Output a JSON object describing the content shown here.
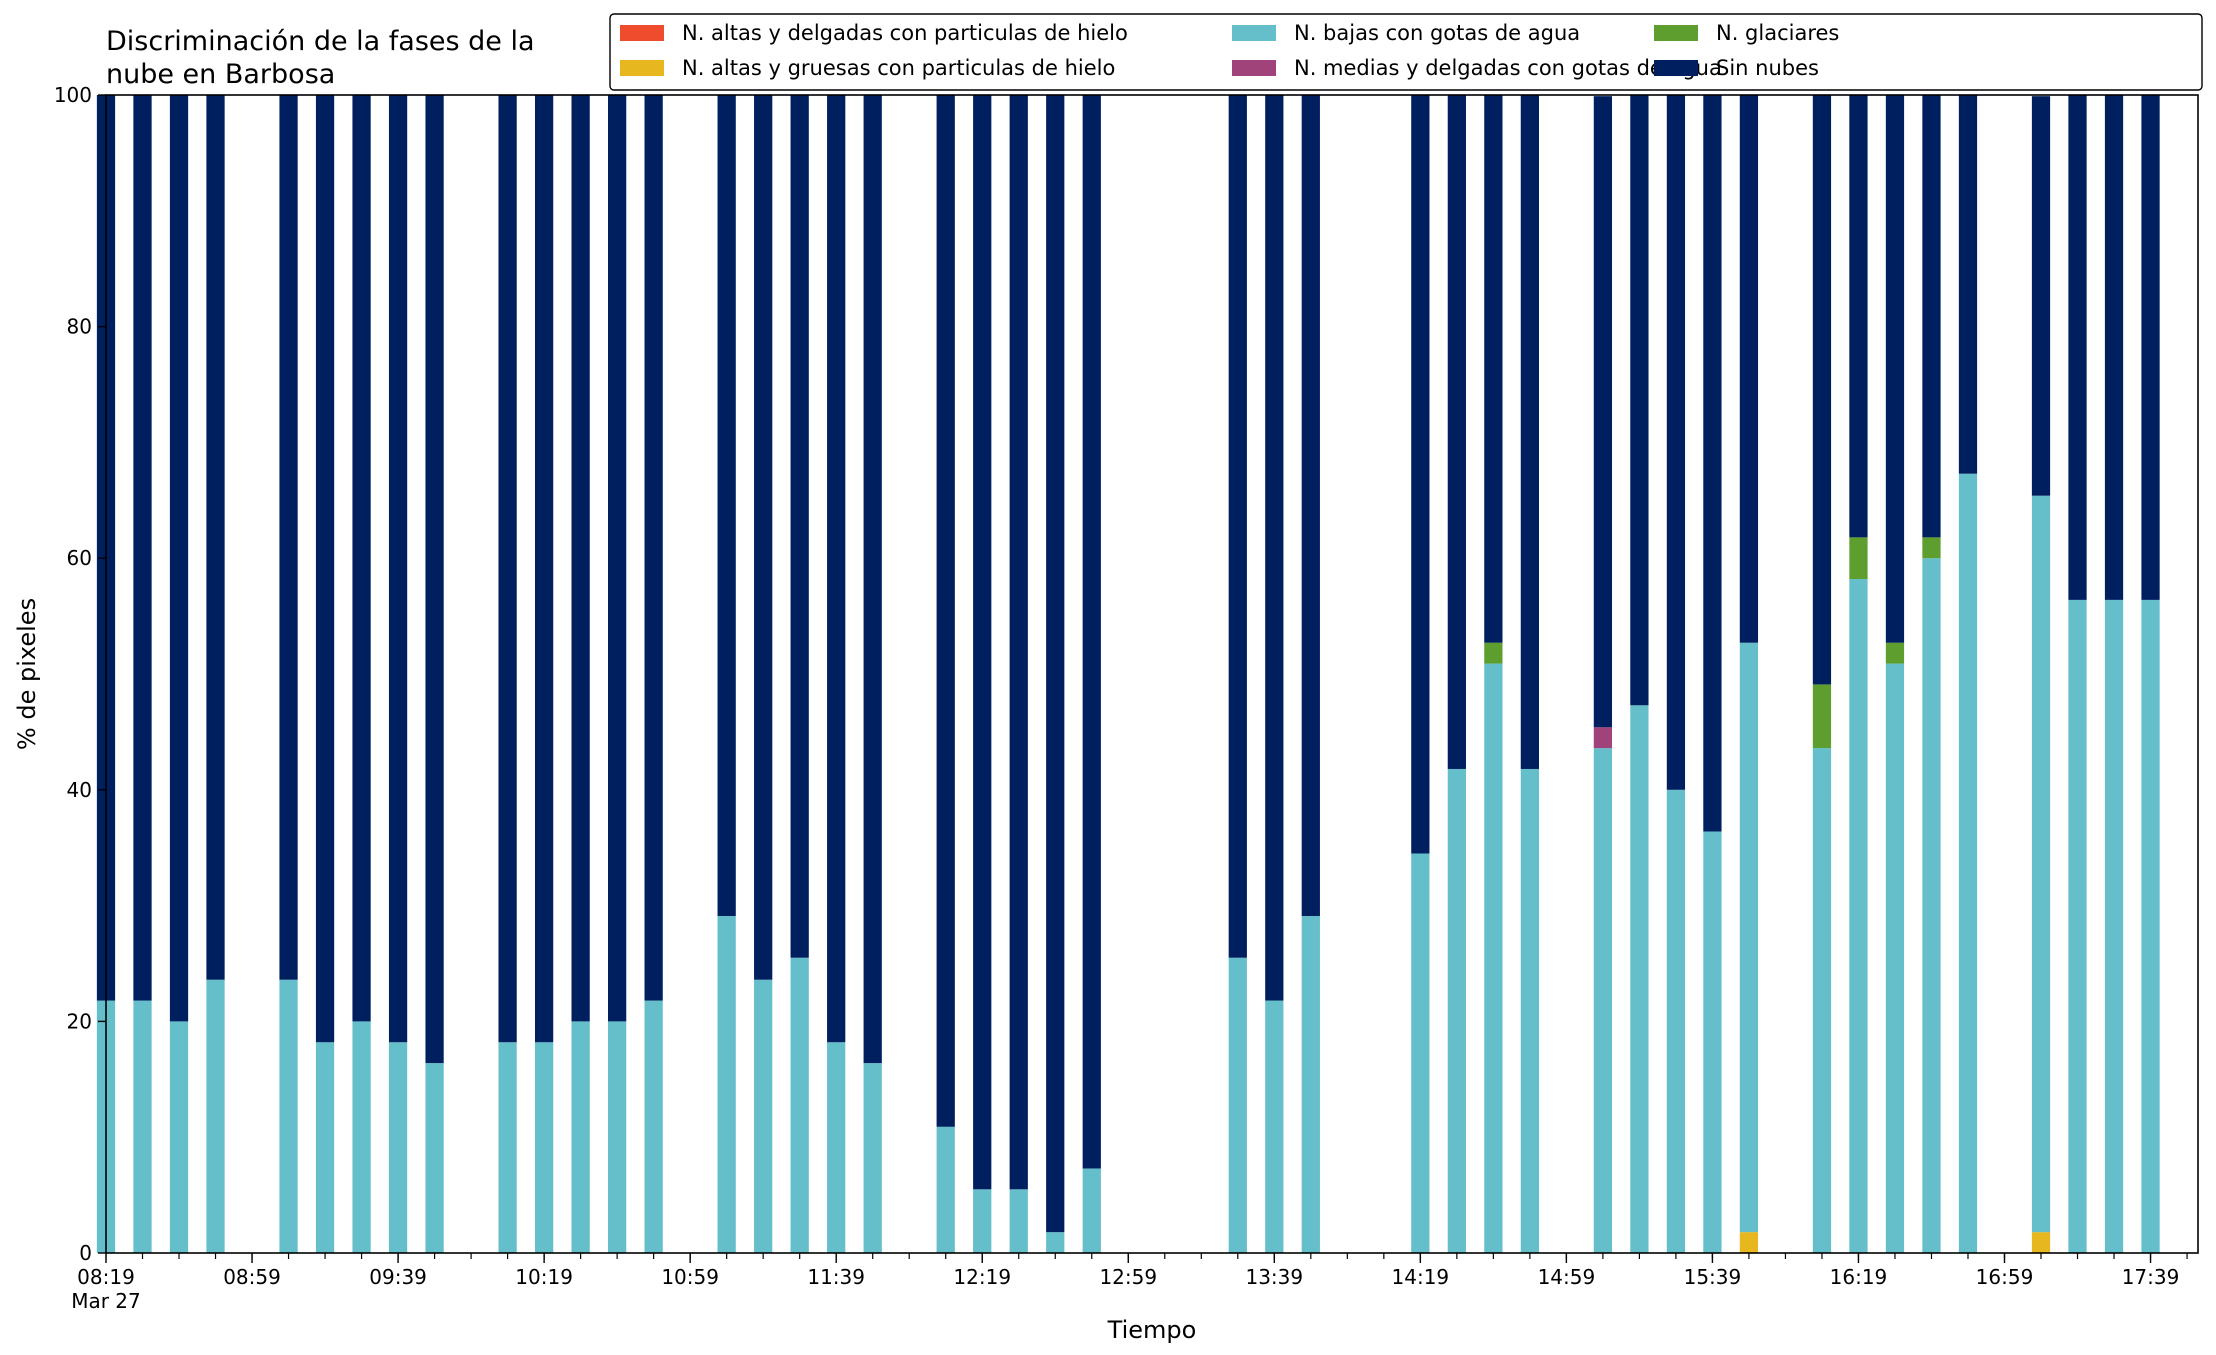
{
  "chart_data": {
    "type": "bar",
    "stacked": true,
    "title_lines": [
      "Discriminación de la fases de la",
      "nube en Barbosa"
    ],
    "xlabel": "Tiempo",
    "ylabel": "% de pixeles",
    "ylim": [
      0,
      100
    ],
    "yticks": [
      0,
      20,
      40,
      60,
      80,
      100
    ],
    "grid": false,
    "legend_position": "top-right",
    "x_start_minutes": 499,
    "x_end_minutes": 1072,
    "x_step_minutes": 10,
    "minor_tick_step_minutes": 10,
    "x_tick_labels": [
      "08:19",
      "08:59",
      "09:39",
      "10:19",
      "10:59",
      "11:39",
      "12:19",
      "12:59",
      "13:39",
      "14:19",
      "14:59",
      "15:39",
      "16:19",
      "16:59",
      "17:39"
    ],
    "x_tick_minutes": [
      499,
      539,
      579,
      619,
      659,
      699,
      739,
      779,
      819,
      859,
      899,
      939,
      979,
      1019,
      1059
    ],
    "x_date_label": "Mar 27",
    "bar_width_minutes": 5,
    "times": [
      "08:19",
      "08:29",
      "08:39",
      "08:49",
      "09:09",
      "09:19",
      "09:29",
      "09:39",
      "09:49",
      "10:09",
      "10:19",
      "10:29",
      "10:39",
      "10:49",
      "11:09",
      "11:19",
      "11:29",
      "11:39",
      "11:49",
      "12:09",
      "12:19",
      "12:29",
      "12:39",
      "12:49",
      "13:29",
      "13:39",
      "13:49",
      "14:19",
      "14:29",
      "14:39",
      "14:49",
      "15:09",
      "15:19",
      "15:29",
      "15:39",
      "15:49",
      "16:09",
      "16:19",
      "16:29",
      "16:39",
      "16:49",
      "17:09",
      "17:19",
      "17:29",
      "17:39"
    ],
    "series": [
      {
        "name": "N. altas y delgadas con particulas de hielo",
        "color": "#ee4c2d",
        "values": [
          0,
          0,
          0,
          0,
          0,
          0,
          0,
          0,
          0,
          0,
          0,
          0,
          0,
          0,
          0,
          0,
          0,
          0,
          0,
          0,
          0,
          0,
          0,
          0,
          0,
          0,
          0,
          0,
          0,
          0,
          0,
          0,
          0,
          0,
          0,
          0,
          0,
          0,
          0,
          0,
          0,
          0,
          0,
          0,
          0
        ]
      },
      {
        "name": "N. altas y gruesas con particulas de hielo",
        "color": "#e6b71e",
        "values": [
          0,
          0,
          0,
          0,
          0,
          0,
          0,
          0,
          0,
          0,
          0,
          0,
          0,
          0,
          0,
          0,
          0,
          0,
          0,
          0,
          0,
          0,
          0,
          0,
          0,
          0,
          0,
          0,
          0,
          0,
          0,
          0,
          0,
          0,
          0,
          1.8,
          0,
          0,
          0,
          0,
          0,
          1.8,
          0,
          0,
          0
        ]
      },
      {
        "name": "N. bajas con gotas de agua",
        "color": "#65bfcb",
        "values": [
          21.8,
          21.8,
          20.0,
          23.6,
          23.6,
          18.2,
          20.0,
          18.2,
          16.4,
          18.2,
          18.2,
          20.0,
          20.0,
          21.8,
          29.1,
          23.6,
          25.5,
          18.2,
          16.4,
          10.9,
          5.5,
          5.5,
          1.8,
          7.3,
          25.5,
          21.8,
          29.1,
          34.5,
          41.8,
          50.9,
          41.8,
          43.6,
          47.3,
          40.0,
          36.4,
          50.9,
          43.6,
          58.2,
          50.9,
          60.0,
          67.3,
          63.6,
          56.4,
          56.4,
          56.4
        ]
      },
      {
        "name": "N. medias y delgadas con gotas de agua",
        "color": "#a0437a",
        "values": [
          0,
          0,
          0,
          0,
          0,
          0,
          0,
          0,
          0,
          0,
          0,
          0,
          0,
          0,
          0,
          0,
          0,
          0,
          0,
          0,
          0,
          0,
          0,
          0,
          0,
          0,
          0,
          0,
          0,
          0,
          0,
          1.8,
          0,
          0,
          0,
          0,
          0,
          0,
          0,
          0,
          0,
          0,
          0,
          0,
          0
        ]
      },
      {
        "name": "N. glaciares",
        "color": "#5e9e2f",
        "values": [
          0,
          0,
          0,
          0,
          0,
          0,
          0,
          0,
          0,
          0,
          0,
          0,
          0,
          0,
          0,
          0,
          0,
          0,
          0,
          0,
          0,
          0,
          0,
          0,
          0,
          0,
          0,
          0,
          0,
          1.8,
          0,
          0,
          0,
          0,
          0,
          0,
          5.5,
          3.6,
          1.8,
          1.8,
          0,
          0,
          0,
          0,
          0
        ]
      },
      {
        "name": "Sin nubes",
        "color": "#001f5f",
        "values": [
          78.2,
          78.2,
          80.0,
          76.4,
          76.4,
          81.8,
          80.0,
          81.8,
          83.6,
          81.8,
          81.8,
          80.0,
          80.0,
          78.2,
          70.9,
          76.4,
          74.5,
          81.8,
          83.6,
          89.1,
          94.5,
          94.5,
          98.2,
          92.7,
          74.5,
          78.2,
          70.9,
          65.5,
          58.2,
          47.3,
          58.2,
          54.5,
          52.7,
          60.0,
          63.6,
          47.3,
          50.9,
          38.2,
          47.3,
          38.2,
          32.7,
          34.5,
          43.6,
          43.6,
          43.6
        ]
      }
    ]
  }
}
